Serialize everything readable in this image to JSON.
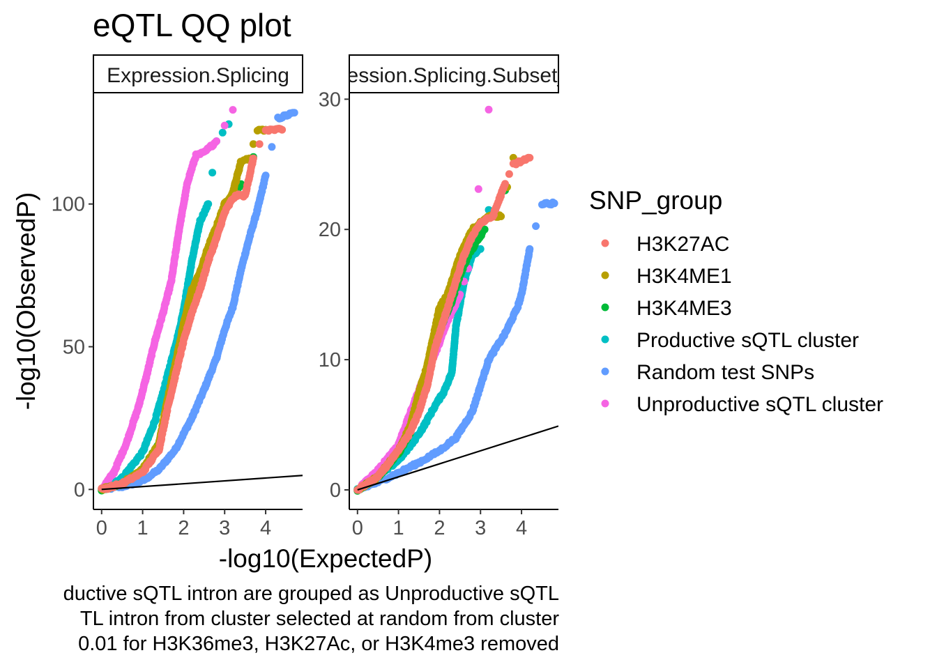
{
  "title": "eQTL QQ plot",
  "colors": {
    "H3K27AC": "#F8766D",
    "H3K4ME1": "#B79F00",
    "H3K4ME3": "#00BA38",
    "Productive sQTL cluster": "#00BFC4",
    "Random test SNPs": "#619CFF",
    "Unproductive sQTL cluster": "#F564E3"
  },
  "chart_data": [
    {
      "type": "scatter",
      "facet_label": "Expression.Splicing",
      "xlabel": "-log10(ExpectedP)",
      "ylabel": "-log10(ObservedP)",
      "xlim": [
        -0.2,
        4.9
      ],
      "ylim": [
        -7,
        139
      ],
      "x_ticks": [
        0,
        1,
        2,
        3,
        4
      ],
      "y_ticks": [
        0,
        50,
        100
      ],
      "reference_line": {
        "x": [
          0,
          4.9
        ],
        "y": [
          0,
          4.9
        ]
      },
      "series": [
        {
          "name": "H3K27AC",
          "x": [
            0,
            0.5,
            1.0,
            1.4,
            1.6,
            1.8,
            2.0,
            2.2,
            2.4,
            2.6,
            2.8,
            3.0,
            3.2,
            3.3,
            3.5,
            3.7,
            4.0,
            4.4
          ],
          "y": [
            0,
            2,
            6,
            14,
            28,
            40,
            52,
            62,
            70,
            80,
            88,
            97,
            102,
            103,
            103,
            116,
            126,
            126
          ]
        },
        {
          "name": "H3K4ME1",
          "x": [
            0,
            0.5,
            1.0,
            1.4,
            1.6,
            1.8,
            2.0,
            2.2,
            2.4,
            2.6,
            2.8,
            3.0,
            3.2,
            3.4,
            3.6,
            3.8,
            4.0
          ],
          "y": [
            0,
            2,
            7,
            16,
            31,
            44,
            58,
            70,
            76,
            85,
            92,
            100,
            104,
            115,
            116,
            126,
            126
          ]
        },
        {
          "name": "H3K4ME3",
          "x": [
            0,
            0.5,
            1.0,
            1.4,
            1.6,
            1.8,
            2.0,
            2.2,
            2.4,
            2.6,
            2.8,
            3.0,
            3.2,
            3.4,
            4.0
          ],
          "y": [
            0,
            2,
            7,
            16,
            30,
            43,
            56,
            68,
            74,
            82,
            90,
            99,
            103,
            107,
            126
          ]
        },
        {
          "name": "Productive sQTL cluster",
          "x": [
            0,
            0.5,
            1.0,
            1.3,
            1.5,
            1.7,
            1.9,
            2.0,
            2.2,
            2.4,
            2.6,
            2.8,
            3.1
          ],
          "y": [
            0,
            4,
            13,
            24,
            34,
            45,
            56,
            63,
            80,
            94,
            100,
            122,
            128
          ]
        },
        {
          "name": "Random test SNPs",
          "x": [
            0,
            0.5,
            1.0,
            1.4,
            1.8,
            2.2,
            2.5,
            2.8,
            3.0,
            3.2,
            3.4,
            3.6,
            3.8,
            4.0,
            4.3,
            4.7
          ],
          "y": [
            0,
            1,
            3,
            7,
            14,
            25,
            35,
            46,
            56,
            64,
            77,
            88,
            98,
            110,
            130,
            132
          ]
        },
        {
          "name": "Unproductive sQTL cluster",
          "x": [
            0,
            0.3,
            0.6,
            0.9,
            1.1,
            1.3,
            1.5,
            1.7,
            1.9,
            2.1,
            2.3,
            2.5,
            2.8,
            3.2
          ],
          "y": [
            0,
            6,
            16,
            29,
            40,
            52,
            62,
            73,
            92,
            108,
            117,
            118,
            122,
            133
          ]
        }
      ]
    },
    {
      "type": "scatter",
      "facet_label": "Expression.Splicing.Subset_YRI",
      "xlabel": "-log10(ExpectedP)",
      "ylabel": "-log10(ObservedP)",
      "xlim": [
        -0.2,
        4.9
      ],
      "ylim": [
        -1.5,
        30.5
      ],
      "x_ticks": [
        0,
        1,
        2,
        3,
        4
      ],
      "y_ticks": [
        0,
        10,
        20,
        30
      ],
      "reference_line": {
        "x": [
          0,
          4.9
        ],
        "y": [
          0,
          4.9
        ]
      },
      "series": [
        {
          "name": "H3K27AC",
          "x": [
            0,
            0.5,
            1.0,
            1.3,
            1.5,
            1.7,
            1.9,
            2.0,
            2.2,
            2.4,
            2.6,
            2.8,
            3.0,
            3.3,
            3.6,
            3.8,
            4.2
          ],
          "y": [
            0,
            1,
            3,
            4.5,
            6,
            8,
            11,
            12,
            14,
            16,
            18,
            19.5,
            20.5,
            21,
            23.5,
            25,
            25.5
          ]
        },
        {
          "name": "H3K4ME1",
          "x": [
            0,
            0.5,
            1.0,
            1.3,
            1.5,
            1.7,
            1.9,
            2.0,
            2.2,
            2.5,
            2.8,
            3.0,
            3.2,
            3.5,
            3.8
          ],
          "y": [
            0,
            1,
            3,
            5,
            7.5,
            9.5,
            12.5,
            14,
            15,
            18,
            20,
            20.5,
            21,
            21,
            25.5
          ]
        },
        {
          "name": "H3K4ME3",
          "x": [
            0,
            0.5,
            1.0,
            1.3,
            1.5,
            1.7,
            1.9,
            2.1,
            2.3,
            2.5,
            2.7,
            2.9,
            3.1,
            3.6
          ],
          "y": [
            0,
            1,
            2.8,
            4.5,
            6.5,
            9,
            12,
            13,
            14.5,
            16.5,
            18,
            19,
            20,
            23
          ]
        },
        {
          "name": "Productive sQTL cluster",
          "x": [
            0,
            0.5,
            1.0,
            1.3,
            1.6,
            1.9,
            2.1,
            2.3,
            2.4,
            2.6,
            2.8,
            3.0,
            3.2
          ],
          "y": [
            0,
            1,
            2.3,
            3.4,
            4.8,
            6.5,
            7.5,
            9,
            12.5,
            16,
            18,
            18.5,
            21.5
          ]
        },
        {
          "name": "Random test SNPs",
          "x": [
            0,
            0.5,
            1.0,
            1.5,
            2.0,
            2.4,
            2.8,
            3.0,
            3.2,
            3.4,
            3.6,
            3.9,
            4.0,
            4.2,
            4.5,
            4.8
          ],
          "y": [
            0,
            0.6,
            1.3,
            2.1,
            3,
            4,
            6,
            8,
            10,
            11,
            12,
            14,
            15,
            18.5,
            22,
            22
          ]
        },
        {
          "name": "Unproductive sQTL cluster",
          "x": [
            0,
            0.5,
            1.0,
            1.3,
            1.6,
            1.9,
            2.2,
            2.5,
            2.7,
            3.2
          ],
          "y": [
            0,
            1.5,
            3.5,
            6,
            8.5,
            10.5,
            13,
            15,
            17,
            29.2
          ]
        }
      ]
    }
  ],
  "legend": {
    "title": "SNP_group",
    "items": [
      "H3K27AC",
      "H3K4ME1",
      "H3K4ME3",
      "Productive sQTL cluster",
      "Random test SNPs",
      "Unproductive sQTL cluster"
    ]
  },
  "caption": [
    "ductive sQTL intron are grouped as Unproductive sQTL",
    "TL intron from cluster selected at random from cluster",
    "0.01 for H3K36me3, H3K27Ac, or H3K4me3 removed"
  ]
}
